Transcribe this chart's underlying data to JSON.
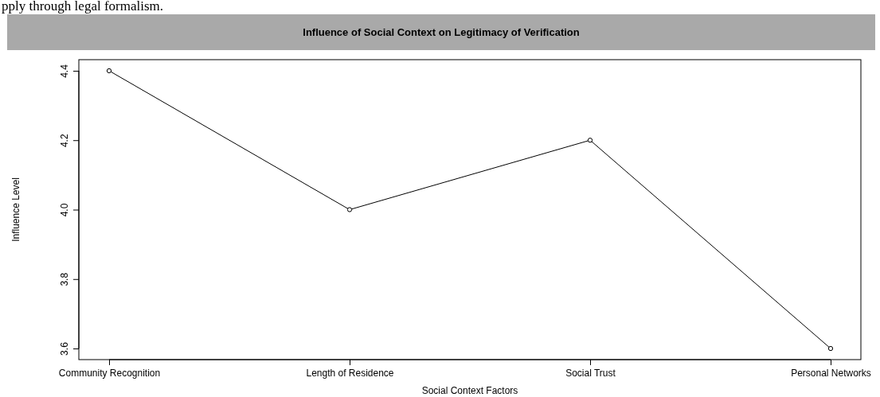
{
  "chart_data": {
    "type": "line",
    "title": "Influence of Social Context on Legitimacy of Verification",
    "xlabel": "Social Context Factors",
    "ylabel": "Influence Level",
    "annotations": [
      "pply through legal formalism."
    ],
    "categories": [
      "Community Recognition",
      "Length of Residence",
      "Social Trust",
      "Personal Networks"
    ],
    "values": [
      4.4,
      4.0,
      4.2,
      3.6
    ],
    "color": "#000000",
    "marker": "circle",
    "line_style": "solid",
    "ylim": [
      3.568,
      4.432
    ],
    "yticks": [
      3.6,
      3.8,
      {
        "value": 4.0,
        "label": "4.0"
      },
      4.2,
      4.4
    ],
    "grid": false
  }
}
